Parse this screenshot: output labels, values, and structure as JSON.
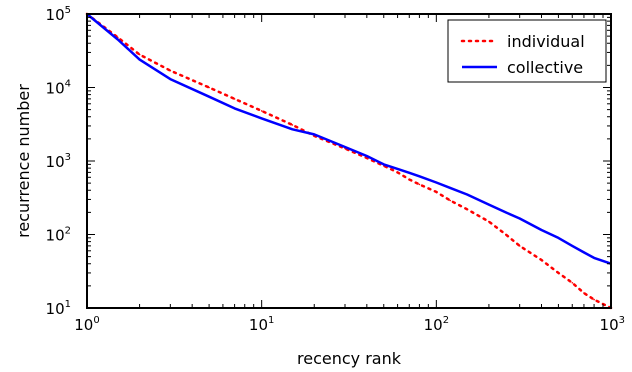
{
  "chart_data": {
    "type": "line",
    "title": "",
    "xlabel": "recency rank",
    "ylabel": "recurrence number",
    "x_scale": "log",
    "y_scale": "log",
    "xlim": [
      1,
      1000
    ],
    "ylim": [
      10,
      100000
    ],
    "grid": false,
    "legend_position": "top-right",
    "x_ticks": [
      {
        "value": 1,
        "base": "10",
        "exp": "0"
      },
      {
        "value": 10,
        "base": "10",
        "exp": "1"
      },
      {
        "value": 100,
        "base": "10",
        "exp": "2"
      },
      {
        "value": 1000,
        "base": "10",
        "exp": "3"
      }
    ],
    "y_ticks": [
      {
        "value": 10,
        "base": "10",
        "exp": "1"
      },
      {
        "value": 100,
        "base": "10",
        "exp": "2"
      },
      {
        "value": 1000,
        "base": "10",
        "exp": "3"
      },
      {
        "value": 10000,
        "base": "10",
        "exp": "4"
      },
      {
        "value": 100000,
        "base": "10",
        "exp": "5"
      }
    ],
    "series": [
      {
        "name": "individual",
        "color": "#ff0000",
        "style": "dotted",
        "x": [
          1,
          1.5,
          2,
          3,
          5,
          7,
          10,
          15,
          20,
          30,
          40,
          50,
          60,
          70,
          80,
          100,
          120,
          150,
          200,
          250,
          300,
          400,
          500,
          600,
          700,
          800,
          1000
        ],
        "y": [
          100000,
          48000,
          28000,
          17000,
          10000,
          7000,
          4800,
          3100,
          2200,
          1480,
          1100,
          860,
          700,
          560,
          480,
          380,
          290,
          220,
          150,
          100,
          70,
          45,
          30,
          22,
          16,
          13,
          10
        ]
      },
      {
        "name": "collective",
        "color": "#0000ff",
        "style": "solid",
        "x": [
          1,
          1.5,
          2,
          3,
          5,
          7,
          10,
          15,
          20,
          30,
          40,
          50,
          60,
          70,
          80,
          100,
          120,
          150,
          200,
          250,
          300,
          400,
          500,
          600,
          700,
          800,
          1000
        ],
        "y": [
          100000,
          45000,
          24000,
          13000,
          7500,
          5200,
          3800,
          2700,
          2300,
          1550,
          1170,
          900,
          780,
          690,
          620,
          510,
          430,
          350,
          255,
          200,
          165,
          115,
          90,
          70,
          57,
          48,
          40
        ]
      }
    ]
  }
}
